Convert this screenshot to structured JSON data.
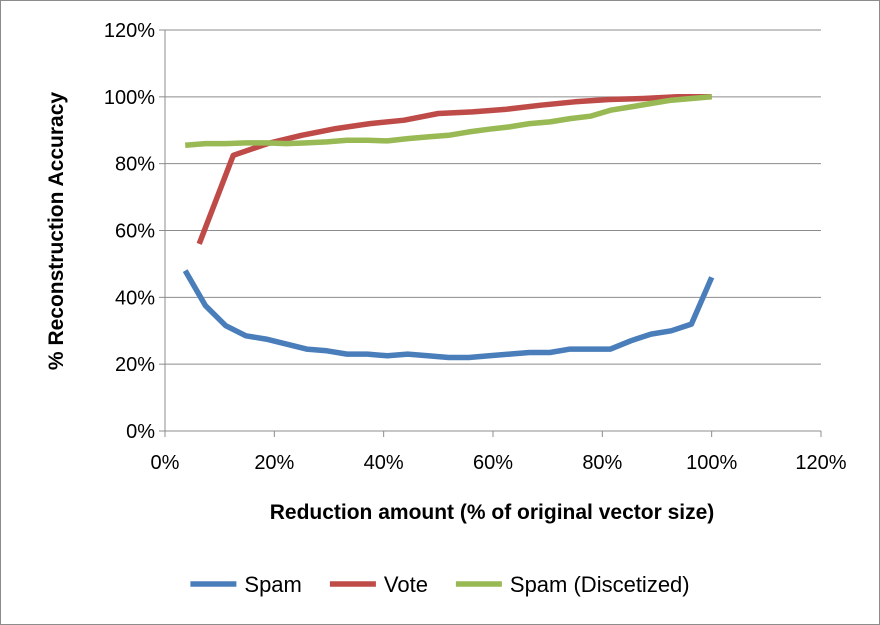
{
  "chart_data": {
    "type": "line",
    "title": "",
    "xlabel": "Reduction amount (% of original vector size)",
    "ylabel": "% Reconstruction Accuracy",
    "xlim": [
      0,
      120
    ],
    "ylim": [
      0,
      120
    ],
    "x_ticks": [
      "0%",
      "20%",
      "40%",
      "60%",
      "80%",
      "100%",
      "120%"
    ],
    "y_ticks": [
      "0%",
      "20%",
      "40%",
      "60%",
      "80%",
      "100%",
      "120%"
    ],
    "grid": "horizontal",
    "legend_position": "bottom",
    "series": [
      {
        "name": "Spam",
        "color": "#4a7ebb",
        "points": [
          [
            3.7,
            48
          ],
          [
            7.4,
            37.5
          ],
          [
            11.1,
            31.5
          ],
          [
            14.8,
            28.5
          ],
          [
            18.5,
            27.5
          ],
          [
            22.2,
            26
          ],
          [
            25.9,
            24.5
          ],
          [
            29.6,
            24
          ],
          [
            33.3,
            23
          ],
          [
            37,
            23
          ],
          [
            40.7,
            22.5
          ],
          [
            44.4,
            23
          ],
          [
            48.1,
            22.5
          ],
          [
            51.9,
            22
          ],
          [
            55.6,
            22
          ],
          [
            59.3,
            22.5
          ],
          [
            63,
            23
          ],
          [
            66.7,
            23.5
          ],
          [
            70.4,
            23.5
          ],
          [
            74.1,
            24.5
          ],
          [
            77.8,
            24.5
          ],
          [
            81.5,
            24.5
          ],
          [
            85.2,
            27
          ],
          [
            88.9,
            29
          ],
          [
            92.6,
            30
          ],
          [
            96.3,
            32
          ],
          [
            100,
            46
          ]
        ]
      },
      {
        "name": "Vote",
        "color": "#be4b48",
        "points": [
          [
            6.25,
            56
          ],
          [
            12.5,
            82.5
          ],
          [
            18.75,
            86
          ],
          [
            25,
            88.5
          ],
          [
            31.25,
            90.5
          ],
          [
            37.5,
            92
          ],
          [
            43.75,
            93
          ],
          [
            50,
            95
          ],
          [
            56.25,
            95.5
          ],
          [
            62.5,
            96.3
          ],
          [
            68.75,
            97.5
          ],
          [
            75,
            98.5
          ],
          [
            81.25,
            99.2
          ],
          [
            87.5,
            99.5
          ],
          [
            93.75,
            100
          ],
          [
            100,
            100
          ]
        ]
      },
      {
        "name": "Spam (Discetized)",
        "color": "#98b954",
        "points": [
          [
            3.7,
            85.5
          ],
          [
            7.4,
            86
          ],
          [
            11.1,
            86
          ],
          [
            14.8,
            86.2
          ],
          [
            18.5,
            86.2
          ],
          [
            22.2,
            86
          ],
          [
            25.9,
            86.2
          ],
          [
            29.6,
            86.5
          ],
          [
            33.3,
            87
          ],
          [
            37,
            87
          ],
          [
            40.7,
            86.8
          ],
          [
            44.4,
            87.5
          ],
          [
            48.1,
            88
          ],
          [
            51.9,
            88.5
          ],
          [
            55.6,
            89.5
          ],
          [
            59.3,
            90.3
          ],
          [
            63,
            91
          ],
          [
            66.7,
            92
          ],
          [
            70.4,
            92.5
          ],
          [
            74.1,
            93.5
          ],
          [
            77.8,
            94.2
          ],
          [
            81.5,
            96
          ],
          [
            85.2,
            97
          ],
          [
            88.9,
            98
          ],
          [
            92.6,
            99
          ],
          [
            96.3,
            99.5
          ],
          [
            100,
            100
          ]
        ]
      }
    ]
  }
}
